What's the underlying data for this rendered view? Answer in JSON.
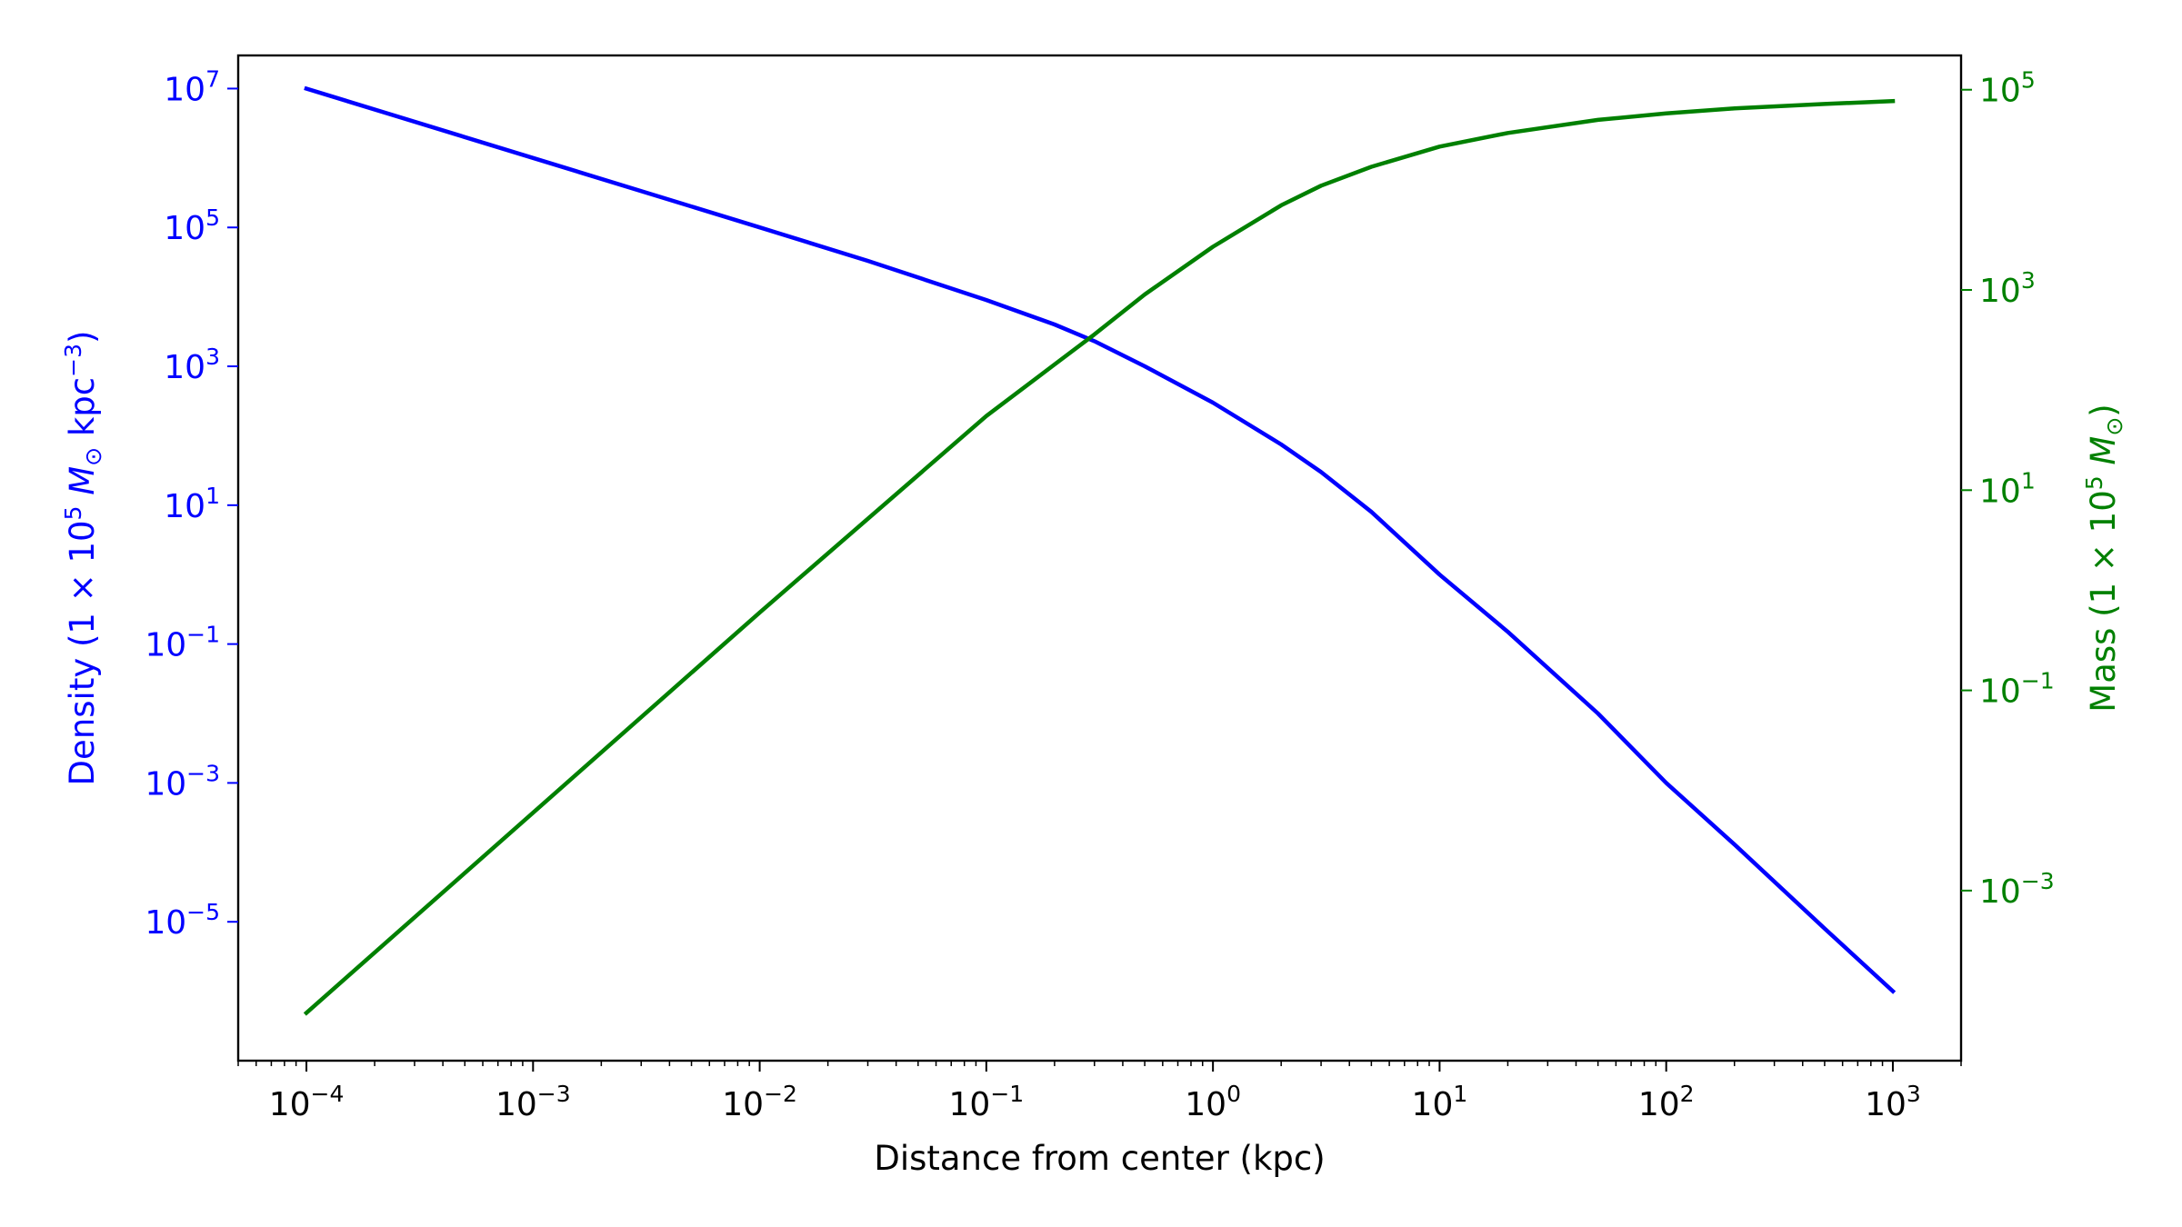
{
  "chart_data": {
    "type": "line",
    "xlabel": "Distance from center (kpc)",
    "x_scale": "log",
    "xlim": [
      5e-05,
      2000
    ],
    "x_ticks": [
      {
        "base": "10",
        "exp": "−4",
        "value": 0.0001
      },
      {
        "base": "10",
        "exp": "−3",
        "value": 0.001
      },
      {
        "base": "10",
        "exp": "−2",
        "value": 0.01
      },
      {
        "base": "10",
        "exp": "−1",
        "value": 0.1
      },
      {
        "base": "10",
        "exp": "0",
        "value": 1
      },
      {
        "base": "10",
        "exp": "1",
        "value": 10
      },
      {
        "base": "10",
        "exp": "2",
        "value": 100
      },
      {
        "base": "10",
        "exp": "3",
        "value": 1000
      }
    ],
    "y_left": {
      "label_parts": {
        "pre": "Density (1 × 10",
        "sup1": "5",
        "m": " M",
        "sun": "⊙",
        "mid": " kpc",
        "sup2": "−3",
        "post": ")"
      },
      "color": "#0000ff",
      "scale": "log",
      "ylim": [
        1e-07,
        30000000.0
      ],
      "ticks": [
        {
          "base": "10",
          "exp": "7",
          "value": 10000000.0
        },
        {
          "base": "10",
          "exp": "5",
          "value": 100000.0
        },
        {
          "base": "10",
          "exp": "3",
          "value": 1000.0
        },
        {
          "base": "10",
          "exp": "1",
          "value": 10
        },
        {
          "base": "10",
          "exp": "−1",
          "value": 0.1
        },
        {
          "base": "10",
          "exp": "−3",
          "value": 0.001
        },
        {
          "base": "10",
          "exp": "−5",
          "value": 1e-05
        }
      ]
    },
    "y_right": {
      "label_parts": {
        "pre": "Mass (1 × 10",
        "sup1": "5",
        "m": " M",
        "sun": "⊙",
        "post": ")"
      },
      "color": "#008000",
      "scale": "log",
      "ylim": [
        2e-05,
        220000.0
      ],
      "ticks": [
        {
          "base": "10",
          "exp": "5",
          "value": 100000.0
        },
        {
          "base": "10",
          "exp": "3",
          "value": 1000.0
        },
        {
          "base": "10",
          "exp": "1",
          "value": 10
        },
        {
          "base": "10",
          "exp": "−1",
          "value": 0.1
        },
        {
          "base": "10",
          "exp": "−3",
          "value": 0.001
        }
      ]
    },
    "series": [
      {
        "axis": "left",
        "color": "#0000ff",
        "x": [
          0.0001,
          0.001,
          0.01,
          0.03,
          0.1,
          0.2,
          0.3,
          0.5,
          1,
          2,
          3,
          5,
          10,
          20,
          50,
          100,
          200,
          500,
          1000
        ],
        "y": [
          10000000.0,
          1000000.0,
          100000.0,
          33000.0,
          9000.0,
          4000.0,
          2300.0,
          1000.0,
          300,
          75,
          30,
          8,
          1,
          0.15,
          0.01,
          0.001,
          0.00013,
          8e-06,
          1e-06
        ]
      },
      {
        "axis": "right",
        "color": "#008000",
        "x": [
          0.0001,
          0.001,
          0.01,
          0.1,
          0.2,
          0.3,
          0.5,
          1,
          2,
          3,
          5,
          10,
          20,
          50,
          100,
          200,
          500,
          1000
        ],
        "y": [
          6e-05,
          0.006,
          0.6,
          55,
          180,
          360,
          900,
          2700,
          7000,
          11000,
          17000,
          27000,
          37000,
          50000,
          58000,
          65000,
          72000,
          77000
        ]
      }
    ]
  }
}
